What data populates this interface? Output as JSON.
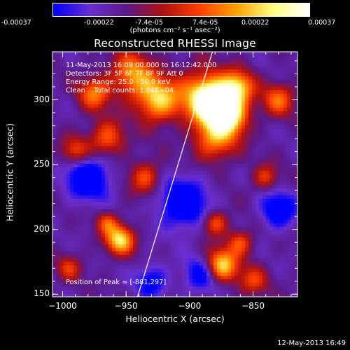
{
  "colorbar": {
    "tick_labels": [
      "-0.00037",
      "-0.00022",
      "-7.4e-05",
      "7.4e-05",
      "0.00022",
      "0.00037"
    ],
    "units_label": "(photons cm⁻² s⁻¹ asec⁻²)",
    "range": [
      -0.00037,
      0.00037
    ]
  },
  "info_lines": {
    "time_range": "11-May-2013 16:09:00.000 to 16:12:42.000",
    "detectors": "Detectors: 3F 5F 6F 7F 8F 9F Att 0",
    "energy": "Energy Range: 25.0 - 50.0 keV",
    "clean": "Clean    Total counts: 1.04E+04",
    "peak": "Position of Peak = [-881,297]"
  },
  "footer_timestamp": "12-May-2013 16:49",
  "chart_data": {
    "type": "heatmap",
    "title": "Reconstructed RHESSI Image",
    "xlabel": "Heliocentric X (arcsec)",
    "ylabel": "Heliocentric Y (arcsec)",
    "xlim": [
      -1008,
      -815
    ],
    "ylim": [
      148,
      337
    ],
    "x_ticks": [
      -1000,
      -950,
      -900,
      -850
    ],
    "x_tick_labels": [
      "−1000",
      "−950",
      "−900",
      "−850"
    ],
    "y_ticks": [
      150,
      200,
      250,
      300
    ],
    "y_tick_labels": [
      "150",
      "200",
      "250",
      "300"
    ],
    "limb_line": [
      [
        -941,
        148
      ],
      [
        -882,
        337
      ]
    ],
    "colormap": [
      "#0000ff",
      "#6a2fd0",
      "#5a1a8a",
      "#b01010",
      "#ff4000",
      "#ffa000",
      "#ffff80",
      "#ffffff"
    ],
    "sources": [
      {
        "x": -881,
        "y": 297,
        "sigma": 11,
        "amp": 1.0
      },
      {
        "x": -890,
        "y": 305,
        "sigma": 14,
        "amp": 0.55
      },
      {
        "x": -868,
        "y": 288,
        "sigma": 10,
        "amp": 0.8
      },
      {
        "x": -880,
        "y": 270,
        "sigma": 12,
        "amp": 0.6
      },
      {
        "x": -862,
        "y": 310,
        "sigma": 9,
        "amp": 0.7
      },
      {
        "x": -925,
        "y": 300,
        "sigma": 12,
        "amp": 0.75
      },
      {
        "x": -945,
        "y": 320,
        "sigma": 12,
        "amp": 0.6
      },
      {
        "x": -975,
        "y": 305,
        "sigma": 9,
        "amp": 0.55
      },
      {
        "x": -965,
        "y": 270,
        "sigma": 10,
        "amp": 0.5
      },
      {
        "x": -990,
        "y": 260,
        "sigma": 8,
        "amp": 0.45
      },
      {
        "x": -935,
        "y": 240,
        "sigma": 9,
        "amp": 0.45
      },
      {
        "x": -955,
        "y": 192,
        "sigma": 8,
        "amp": 0.8
      },
      {
        "x": -965,
        "y": 205,
        "sigma": 6,
        "amp": 0.4
      },
      {
        "x": -875,
        "y": 172,
        "sigma": 9,
        "amp": 0.85
      },
      {
        "x": -880,
        "y": 205,
        "sigma": 7,
        "amp": 0.5
      },
      {
        "x": -860,
        "y": 190,
        "sigma": 7,
        "amp": 0.45
      },
      {
        "x": -830,
        "y": 300,
        "sigma": 9,
        "amp": 0.5
      },
      {
        "x": -840,
        "y": 240,
        "sigma": 7,
        "amp": 0.4
      },
      {
        "x": -995,
        "y": 170,
        "sigma": 7,
        "amp": 0.35
      },
      {
        "x": -850,
        "y": 160,
        "sigma": 8,
        "amp": 0.4
      }
    ],
    "negative_regions": [
      {
        "x": -980,
        "y": 240,
        "sigma": 12,
        "amp": -0.6
      },
      {
        "x": -905,
        "y": 220,
        "sigma": 14,
        "amp": -0.55
      },
      {
        "x": -830,
        "y": 215,
        "sigma": 10,
        "amp": -0.5
      },
      {
        "x": -890,
        "y": 165,
        "sigma": 10,
        "amp": -0.45
      },
      {
        "x": -930,
        "y": 160,
        "sigma": 9,
        "amp": -0.4
      }
    ]
  }
}
